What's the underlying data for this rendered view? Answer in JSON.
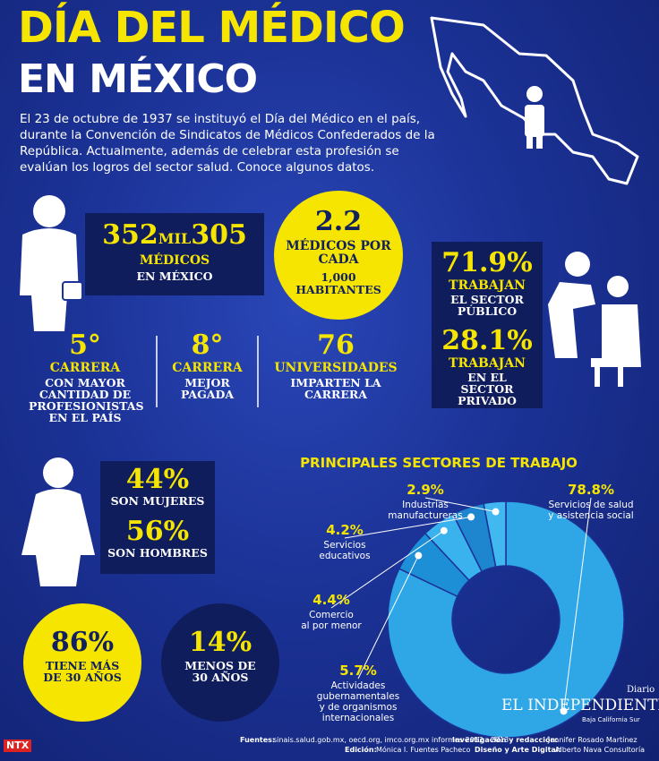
{
  "header": {
    "title_line1": "DÍA DEL MÉDICO",
    "title_line2": "EN MÉXICO",
    "intro": "El 23 de octubre de 1937 se instituyó el Día del Médico en el país, durante la Convención de Sindicatos de Médicos Confederados de la República. Actualmente, además de celebrar esta profesión se evalúan los logros del sector salud. Conoce algunos datos."
  },
  "doctors": {
    "number_a": "352",
    "number_unit": "MIL",
    "number_b": "305",
    "label": "MÉDICOS",
    "sublabel": "EN MÉXICO"
  },
  "ratio": {
    "number": "2.2",
    "label": "MÉDICOS POR CADA",
    "sublabel_number": "1,000",
    "sublabel": "HABITANTES"
  },
  "sector": {
    "public_value": "71.9%",
    "public_label": "TRABAJAN",
    "public_sublabel": "EL SECTOR PÚBLICO",
    "private_value": "28.1%",
    "private_label": "TRABAJAN",
    "private_sublabel": "EN EL SECTOR PRIVADO"
  },
  "rankings": [
    {
      "value": "5°",
      "label": "CARRERA",
      "sublabel": "CON MAYOR CANTIDAD DE PROFESIONISTAS EN EL PAÍS"
    },
    {
      "value": "8°",
      "label": "CARRERA",
      "sublabel": "MEJOR PAGADA"
    },
    {
      "value": "76",
      "label": "UNIVERSIDADES",
      "sublabel": "IMPARTEN LA CARRERA"
    }
  ],
  "gender": {
    "women_value": "44%",
    "women_label": "SON MUJERES",
    "men_value": "56%",
    "men_label": "SON HOMBRES"
  },
  "age": {
    "over_value": "86%",
    "over_label": "TIENE MÁS DE 30 AÑOS",
    "under_value": "14%",
    "under_label": "MENOS DE 30 AÑOS"
  },
  "chart_data": {
    "type": "donut",
    "title": "PRINCIPALES SECTORES DE TRABAJO",
    "categories": [
      "Servicios de salud\ny asistencia social",
      "Actividades\ngubernamentales\ny de organismos\ninternacionales",
      "Comercio\nal por menor",
      "Servicios\neducativos",
      "Industrias\nmanufactureras"
    ],
    "values": [
      78.8,
      5.7,
      4.4,
      4.2,
      2.9
    ],
    "value_labels": [
      "78.8%",
      "5.7%",
      "4.4%",
      "4.2%",
      "2.9%"
    ],
    "colors": [
      "#2fa6e6",
      "#1c8fd6",
      "#3ab2ee",
      "#1d86cf",
      "#42b8f0"
    ]
  },
  "footer": {
    "sources_label": "Fuentes:",
    "sources": "sinais.salud.gob.mx, oecd.org, imco.org.mx informes 2012 - 2013",
    "research_label": "Investigación y redacción:",
    "research": "Jennifer Rosado Martínez",
    "edit_label": "Edición:",
    "edit": "Mónica I. Fuentes Pacheco",
    "design_label": "Diseño y Arte Digital:",
    "design": "Alberto Nava Consultoría",
    "agency": "NTX",
    "logo_top": "Diario",
    "logo": "EL INDEPENDIENTE",
    "logo_sub": "Baja California Sur"
  }
}
